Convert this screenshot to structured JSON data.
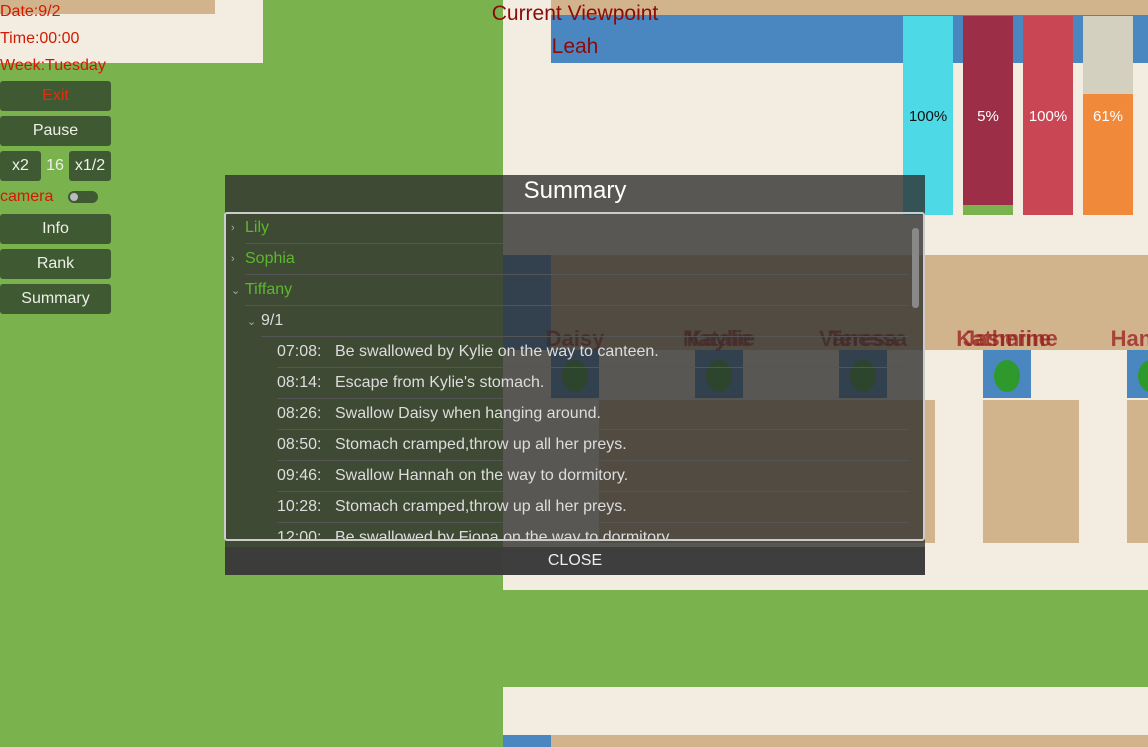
{
  "hud": {
    "date": "Date:9/2",
    "time": "Time:00:00",
    "week": "Week:Tuesday",
    "exit": "Exit",
    "pause": "Pause",
    "speed_up": "x2",
    "speed": "16",
    "speed_down": "x1/2",
    "camera": "camera",
    "info": "Info",
    "rank": "Rank",
    "summary": "Summary"
  },
  "viewpoint": {
    "title": "Current Viewpoint",
    "name": "Leah"
  },
  "status_bars": [
    {
      "value": 100,
      "label": "100%",
      "color": "#4dd9e6",
      "background": "#4dd9e6"
    },
    {
      "value": 5,
      "label": "5%",
      "color": "#7ab24e",
      "background": "#9c2f47"
    },
    {
      "value": 100,
      "label": "100%",
      "color": "#c94655",
      "background": "#c94655"
    },
    {
      "value": 61,
      "label": "61%",
      "color": "#f08a3a",
      "background": "#d4d0c0"
    }
  ],
  "map_labels": [
    [
      "Daisy"
    ],
    [
      "Natalie",
      "Kaylie"
    ],
    [
      "Vanessa",
      "Teresa"
    ],
    [
      "Katherine",
      "Jasmine"
    ],
    [
      "Hannah"
    ]
  ],
  "summary": {
    "title": "Summary",
    "close": "CLOSE",
    "people": [
      "Lily",
      "Sophia",
      "Tiffany"
    ],
    "date": "9/1",
    "entries": [
      {
        "time": "07:08:",
        "text": "Be swallowed by Kylie on the way to canteen."
      },
      {
        "time": "08:14:",
        "text": "Escape from Kylie's stomach."
      },
      {
        "time": "08:26:",
        "text": "Swallow Daisy when hanging around."
      },
      {
        "time": "08:50:",
        "text": "Stomach cramped,throw up all her preys."
      },
      {
        "time": "09:46:",
        "text": "Swallow Hannah on the way to dormitory."
      },
      {
        "time": "10:28:",
        "text": "Stomach cramped,throw up all her preys."
      },
      {
        "time": "12:00:",
        "text": "Be swallowed by Fiona on the way to dormitory."
      }
    ]
  }
}
